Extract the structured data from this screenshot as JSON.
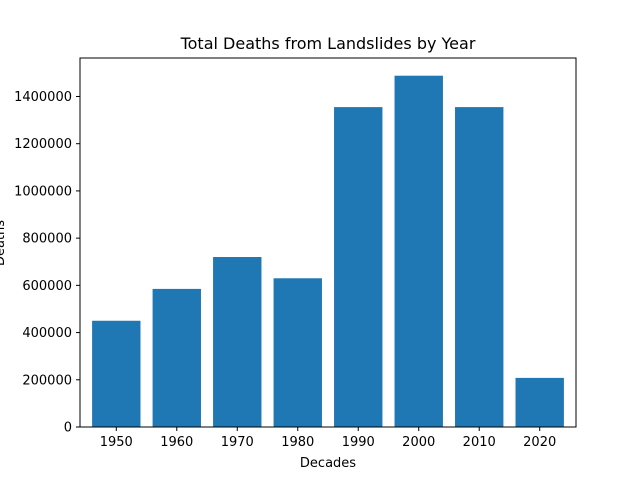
{
  "chart_data": {
    "type": "bar",
    "title": "Total Deaths from Landslides by Year",
    "xlabel": "Decades",
    "ylabel": "Deaths",
    "categories": [
      "1950",
      "1960",
      "1970",
      "1980",
      "1990",
      "2000",
      "2010",
      "2020"
    ],
    "values": [
      450000,
      585000,
      720000,
      630000,
      1355000,
      1488000,
      1355000,
      208000
    ],
    "ylim": [
      0,
      1563000
    ],
    "yticks": [
      0,
      200000,
      400000,
      600000,
      800000,
      1000000,
      1200000,
      1400000
    ],
    "ytick_labels": [
      "0",
      "200000",
      "400000",
      "600000",
      "800000",
      "1000000",
      "1200000",
      "1400000"
    ],
    "bar_color": "#1f77b4",
    "grid": false,
    "legend": "none"
  }
}
